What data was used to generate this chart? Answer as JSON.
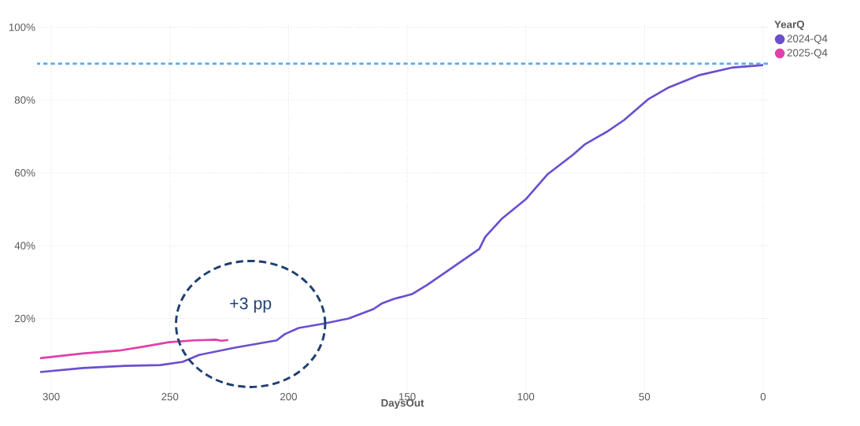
{
  "chart_data": {
    "type": "line",
    "xlabel": "DaysOut",
    "legend_title": "YearQ",
    "legend": "top right",
    "grid": true,
    "xlim": [
      306,
      -2
    ],
    "xticks": [
      300,
      250,
      200,
      150,
      100,
      50,
      0
    ],
    "ylim": [
      0,
      101
    ],
    "yticks": [
      {
        "value": 20,
        "label": "20%"
      },
      {
        "value": 40,
        "label": "40%"
      },
      {
        "value": 60,
        "label": "60%"
      },
      {
        "value": 80,
        "label": "80%"
      },
      {
        "value": 100,
        "label": "100%"
      }
    ],
    "series": [
      {
        "name": "2024-Q4",
        "color": "#6b4fcf",
        "x": [
          304.7,
          286.7,
          269,
          254,
          244.6,
          237.7,
          222.6,
          205,
          201.6,
          195.7,
          185.2,
          174.7,
          164.2,
          160.8,
          155.5,
          148,
          141.6,
          131.6,
          119.6,
          117.1,
          110.3,
          100.1,
          90.7,
          80.1,
          75,
          66.1,
          58.6,
          48.5,
          39.7,
          27.2,
          13.3,
          0
        ],
        "values": [
          5.3,
          6.4,
          7.0,
          7.2,
          8.1,
          10.0,
          12.0,
          14.0,
          15.7,
          17.4,
          18.6,
          20.0,
          22.6,
          24.1,
          25.4,
          26.7,
          29.2,
          33.7,
          39.1,
          42.4,
          47.3,
          52.7,
          59.7,
          65.0,
          67.9,
          71.2,
          74.5,
          80.2,
          83.5,
          86.8,
          88.9,
          89.6
        ]
      },
      {
        "name": "2025-Q4",
        "color": "#e040a8",
        "x": [
          304.7,
          286.7,
          271.4,
          260.9,
          250.5,
          240,
          230.7,
          228.3,
          225.4
        ],
        "values": [
          9.1,
          10.4,
          11.2,
          12.3,
          13.5,
          14.0,
          14.2,
          13.9,
          14.1
        ]
      }
    ],
    "ref_lines": [
      {
        "axis": "y",
        "value": 90,
        "color": "#5aaaf0",
        "line_style": "dashed"
      }
    ],
    "annotations": [
      "+3 pp"
    ]
  }
}
